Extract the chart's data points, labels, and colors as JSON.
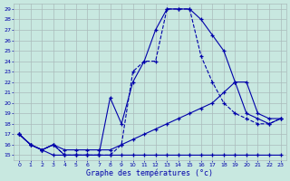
{
  "xlabel": "Graphe des températures (°c)",
  "background_color": "#c8e8e0",
  "grid_color": "#aabbbb",
  "line_color": "#0000aa",
  "xlim": [
    -0.5,
    23.5
  ],
  "ylim": [
    14.5,
    29.5
  ],
  "xticks": [
    0,
    1,
    2,
    3,
    4,
    5,
    6,
    7,
    8,
    9,
    10,
    11,
    12,
    13,
    14,
    15,
    16,
    17,
    18,
    19,
    20,
    21,
    22,
    23
  ],
  "yticks": [
    15,
    16,
    17,
    18,
    19,
    20,
    21,
    22,
    23,
    24,
    25,
    26,
    27,
    28,
    29
  ],
  "series": [
    {
      "x": [
        0,
        1,
        2,
        3,
        4,
        5,
        6,
        7,
        8,
        9,
        10,
        11,
        12,
        13,
        14,
        15,
        16,
        17,
        18,
        19,
        20,
        21,
        22,
        23
      ],
      "y": [
        17,
        16,
        15.5,
        15,
        15,
        15,
        15,
        15,
        15,
        15,
        15,
        15,
        15,
        15,
        15,
        15,
        15,
        15,
        15,
        15,
        15,
        15,
        15,
        15
      ],
      "ls": "-",
      "marker": "+"
    },
    {
      "x": [
        0,
        1,
        2,
        3,
        4,
        5,
        6,
        7,
        8,
        9,
        10,
        11,
        12,
        13,
        14,
        15,
        16,
        17,
        18,
        19,
        20,
        21,
        22,
        23
      ],
      "y": [
        17,
        16,
        15.5,
        16,
        15.5,
        15.5,
        15.5,
        15.5,
        15.5,
        16,
        16.5,
        17,
        17.5,
        18,
        18.5,
        19,
        19.5,
        20,
        21,
        22,
        22,
        19,
        18.5,
        18.5
      ],
      "ls": "-",
      "marker": "+"
    },
    {
      "x": [
        0,
        1,
        2,
        3,
        4,
        5,
        6,
        7,
        8,
        9,
        10,
        11,
        12,
        13,
        14,
        15,
        16,
        17,
        18,
        19,
        20,
        21,
        22,
        23
      ],
      "y": [
        17,
        16,
        15.5,
        16,
        15,
        15,
        15,
        15,
        15,
        16,
        23,
        24,
        24,
        29,
        29,
        29,
        24.5,
        22,
        20,
        19,
        18.5,
        18,
        18,
        18.5
      ],
      "ls": "--",
      "marker": "+"
    },
    {
      "x": [
        0,
        1,
        2,
        3,
        4,
        5,
        6,
        7,
        8,
        9,
        10,
        11,
        12,
        13,
        14,
        15,
        16,
        17,
        18,
        19,
        20,
        21,
        22,
        23
      ],
      "y": [
        17,
        16,
        15.5,
        16,
        15,
        15,
        15,
        15,
        20.5,
        18,
        22,
        24,
        27,
        29,
        29,
        29,
        28,
        26.5,
        25,
        22,
        19,
        18.5,
        18,
        18.5
      ],
      "ls": "-",
      "marker": "+"
    }
  ]
}
